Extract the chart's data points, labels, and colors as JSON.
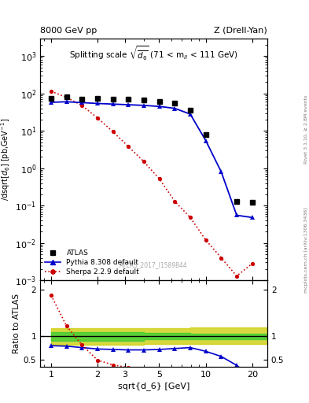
{
  "title_left": "8000 GeV pp",
  "title_right": "Z (Drell-Yan)",
  "panel_title": "Splitting scale $\\sqrt{\\overline{d_6}}$ (71 < m$_{ll}$ < 111 GeV)",
  "ylabel_main": "d$\\sigma$/dsqrt[$d_6$] [pb,GeV$^{-1}$]",
  "ylabel_ratio": "Ratio to ATLAS",
  "xlabel": "sqrt{d_6} [GeV]",
  "watermark": "ATLAS_2017_I1589844",
  "right_label1": "Rivet 3.1.10, ≥ 2.8M events",
  "right_label2": "mcplots.cern.ch [arXiv:1306.3436]",
  "atlas_x": [
    1.0,
    1.26,
    1.58,
    2.0,
    2.51,
    3.16,
    3.98,
    5.01,
    6.31,
    7.94,
    10.0,
    15.85,
    19.95
  ],
  "atlas_y": [
    75,
    80,
    72,
    75,
    72,
    70,
    68,
    62,
    55,
    35,
    8.0,
    0.13,
    0.12
  ],
  "pythia_x": [
    1.0,
    1.26,
    1.58,
    2.0,
    2.51,
    3.16,
    3.98,
    5.01,
    6.31,
    7.94,
    10.0,
    12.59,
    15.85,
    19.95
  ],
  "pythia_y": [
    58,
    60,
    57,
    54,
    52,
    50,
    48,
    45,
    40,
    28,
    5.5,
    0.8,
    0.055,
    0.048
  ],
  "sherpa_x": [
    1.0,
    1.26,
    1.58,
    2.0,
    2.51,
    3.16,
    3.98,
    5.01,
    6.31,
    7.94,
    10.0,
    12.59,
    15.85,
    19.95
  ],
  "sherpa_y": [
    115,
    78,
    48,
    22,
    9.5,
    3.8,
    1.5,
    0.52,
    0.13,
    0.048,
    0.012,
    0.004,
    0.0013,
    0.0028
  ],
  "ratio_pythia_x": [
    1.0,
    1.26,
    1.58,
    2.0,
    2.51,
    3.16,
    3.98,
    5.01,
    6.31,
    7.94,
    10.0,
    12.59,
    15.85,
    19.95
  ],
  "ratio_pythia_y": [
    0.8,
    0.79,
    0.76,
    0.73,
    0.72,
    0.71,
    0.71,
    0.72,
    0.74,
    0.76,
    0.68,
    0.57,
    0.38,
    0.12
  ],
  "ratio_sherpa_x": [
    1.0,
    1.26,
    1.58,
    2.0,
    2.51,
    3.16,
    3.98
  ],
  "ratio_sherpa_y": [
    1.88,
    1.22,
    0.82,
    0.49,
    0.39,
    0.33,
    0.29
  ],
  "band_x": [
    1.0,
    3.98,
    7.94,
    12.59,
    19.95,
    25.0
  ],
  "band_green_lo": [
    0.9,
    0.93,
    0.94,
    0.94,
    0.94,
    0.94
  ],
  "band_green_hi": [
    1.09,
    1.07,
    1.06,
    1.06,
    1.06,
    1.06
  ],
  "band_yellow_lo": [
    0.82,
    0.84,
    0.84,
    0.84,
    0.84,
    0.84
  ],
  "band_yellow_hi": [
    1.17,
    1.17,
    1.19,
    1.19,
    1.19,
    1.19
  ],
  "atlas_color": "#000000",
  "pythia_color": "#0000cc",
  "sherpa_color": "#cc0000",
  "band_green": "#33cc33",
  "band_yellow": "#cccc00",
  "ylim_main": [
    0.001,
    3000.0
  ],
  "ylim_ratio": [
    0.35,
    2.2
  ],
  "xlim": [
    0.85,
    25.0
  ]
}
